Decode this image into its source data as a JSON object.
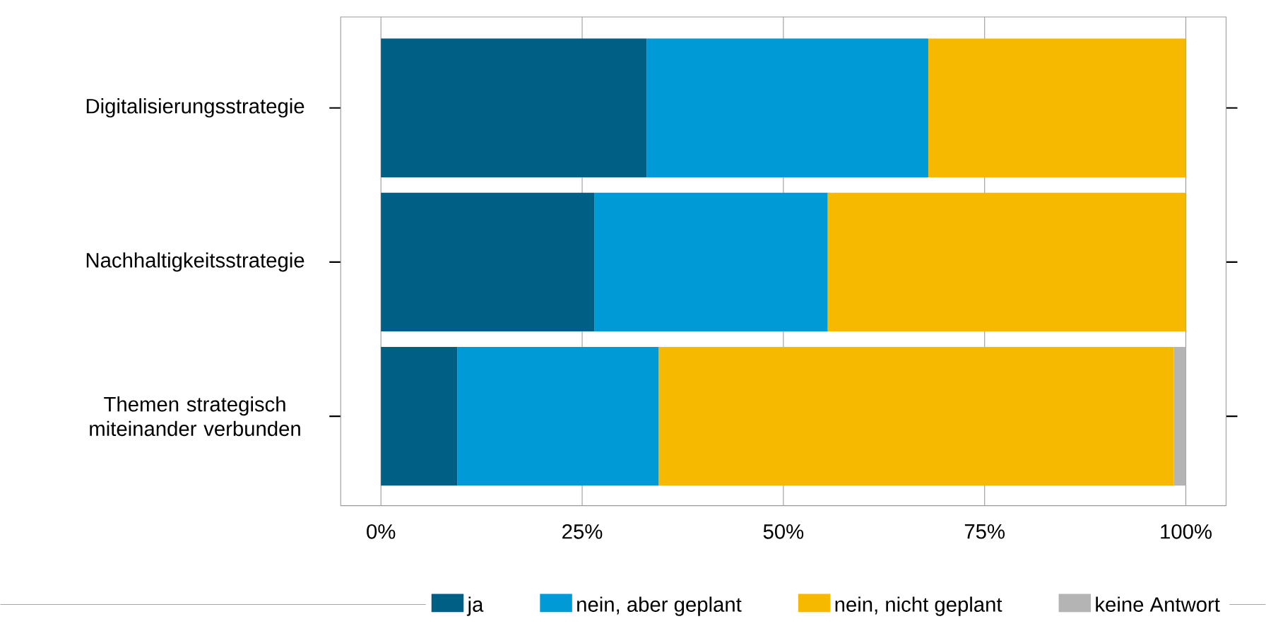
{
  "chart_data": {
    "type": "bar",
    "orientation": "horizontal",
    "stacked": true,
    "categories": [
      "Digitalisierungsstrategie",
      "Nachhaltigkeitsstrategie",
      "Themen strategisch miteinander verbunden"
    ],
    "series": [
      {
        "name": "ja",
        "color": "#005f85",
        "values": [
          33,
          26.5,
          9.5
        ]
      },
      {
        "name": "nein, aber geplant",
        "color": "#009ad6",
        "values": [
          35,
          29,
          25
        ]
      },
      {
        "name": "nein, nicht geplant",
        "color": "#f7b900",
        "values": [
          32,
          44.5,
          64
        ]
      },
      {
        "name": "keine Antwort",
        "color": "#b4b4b4",
        "values": [
          0,
          0,
          1.5
        ]
      }
    ],
    "xlim": [
      -5,
      105
    ],
    "xticks": [
      {
        "value": 0,
        "label": "0%"
      },
      {
        "value": 25,
        "label": "25%"
      },
      {
        "value": 50,
        "label": "50%"
      },
      {
        "value": 75,
        "label": "75%"
      },
      {
        "value": 100,
        "label": "100%"
      }
    ],
    "grid": "x",
    "legend": "bottom"
  }
}
